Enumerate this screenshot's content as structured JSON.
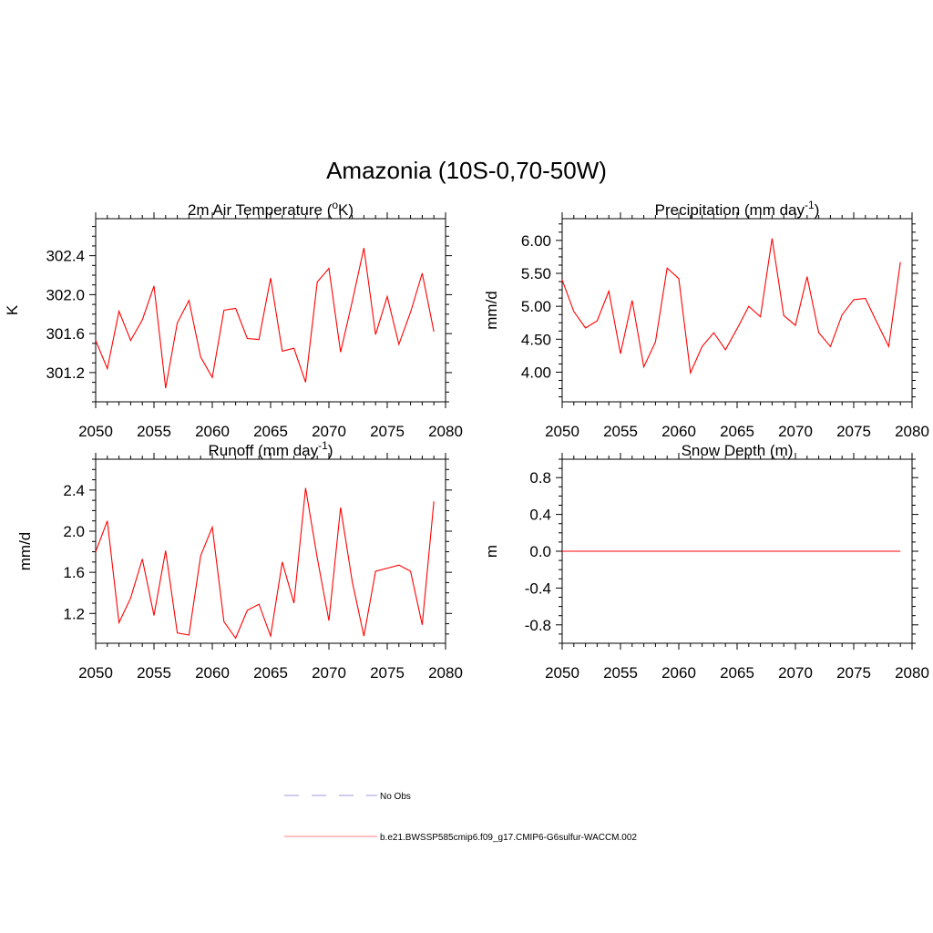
{
  "title": "Amazonia (10S-0,70-50W)",
  "colors": {
    "series": "#ff0000",
    "obs": "#9999dd",
    "axis": "#000000"
  },
  "legend": {
    "obs_label": "No Obs",
    "model_label": "b.e21.BWSSP585cmip6.f09_g17.CMIP6-G6sulfur-WACCM.002"
  },
  "chart_data": [
    {
      "type": "line",
      "title": "2m Air Temperature (oK)",
      "title_parts": {
        "main": "2m Air Temperature (",
        "sup": "o",
        "tail": "K)"
      },
      "ylabel": "K",
      "xlim": [
        2050,
        2080
      ],
      "ylim": [
        300.9,
        302.78
      ],
      "xticks": [
        "2050",
        "2055",
        "2060",
        "2065",
        "2070",
        "2075",
        "2080"
      ],
      "yticks": [
        "301.2",
        "301.6",
        "302.0",
        "302.4"
      ],
      "x": [
        2050,
        2051,
        2052,
        2053,
        2054,
        2055,
        2056,
        2057,
        2058,
        2059,
        2060,
        2061,
        2062,
        2063,
        2064,
        2065,
        2066,
        2067,
        2068,
        2069,
        2070,
        2071,
        2072,
        2073,
        2074,
        2075,
        2076,
        2077,
        2078,
        2079
      ],
      "series": [
        {
          "values": [
            301.53,
            301.24,
            301.83,
            301.53,
            301.74,
            302.09,
            301.04,
            301.71,
            301.94,
            301.36,
            301.15,
            301.84,
            301.86,
            301.55,
            301.54,
            302.17,
            301.42,
            301.45,
            301.1,
            302.13,
            302.27,
            301.41,
            301.93,
            302.48,
            301.59,
            301.98,
            301.49,
            301.82,
            302.22,
            301.62
          ]
        }
      ]
    },
    {
      "type": "line",
      "title": "Precipitation (mm day-1)",
      "title_parts": {
        "main": "Precipitation (mm day",
        "sup": "-1",
        "tail": ")"
      },
      "ylabel": "mm/d",
      "xlim": [
        2050,
        2080
      ],
      "ylim": [
        3.55,
        6.33
      ],
      "xticks": [
        "2050",
        "2055",
        "2060",
        "2065",
        "2070",
        "2075",
        "2080"
      ],
      "yticks": [
        "4.00",
        "4.50",
        "5.00",
        "5.50",
        "6.00"
      ],
      "x": [
        2050,
        2051,
        2052,
        2053,
        2054,
        2055,
        2056,
        2057,
        2058,
        2059,
        2060,
        2061,
        2062,
        2063,
        2064,
        2065,
        2066,
        2067,
        2068,
        2069,
        2070,
        2071,
        2072,
        2073,
        2074,
        2075,
        2076,
        2077,
        2078,
        2079
      ],
      "series": [
        {
          "values": [
            5.4,
            4.92,
            4.67,
            4.78,
            5.23,
            4.28,
            5.09,
            4.08,
            4.46,
            5.58,
            5.42,
            3.99,
            4.39,
            4.6,
            4.34,
            4.66,
            5.0,
            4.84,
            6.03,
            4.86,
            4.71,
            5.45,
            4.6,
            4.39,
            4.87,
            5.1,
            5.12,
            4.75,
            4.39,
            5.67
          ]
        }
      ]
    },
    {
      "type": "line",
      "title": "Runoff (mm day-1)",
      "title_parts": {
        "main": "Runoff (mm day",
        "sup": "-1",
        "tail": ")"
      },
      "ylabel": "mm/d",
      "xlim": [
        2050,
        2080
      ],
      "ylim": [
        0.91,
        2.7
      ],
      "xticks": [
        "2050",
        "2055",
        "2060",
        "2065",
        "2070",
        "2075",
        "2080"
      ],
      "yticks": [
        "1.2",
        "1.6",
        "2.0",
        "2.4"
      ],
      "x": [
        2050,
        2051,
        2052,
        2053,
        2054,
        2055,
        2056,
        2057,
        2058,
        2059,
        2060,
        2061,
        2062,
        2063,
        2064,
        2065,
        2066,
        2067,
        2068,
        2069,
        2070,
        2071,
        2072,
        2073,
        2074,
        2075,
        2076,
        2077,
        2078,
        2079
      ],
      "series": [
        {
          "values": [
            1.8,
            2.1,
            1.11,
            1.35,
            1.73,
            1.18,
            1.81,
            1.01,
            0.99,
            1.76,
            2.04,
            1.12,
            0.96,
            1.23,
            1.29,
            0.98,
            1.7,
            1.3,
            2.42,
            1.74,
            1.13,
            2.23,
            1.51,
            0.98,
            1.61,
            1.64,
            1.67,
            1.61,
            1.09,
            2.29
          ]
        }
      ]
    },
    {
      "type": "line",
      "title": "Snow Depth (m)",
      "title_parts": {
        "main": "Snow Depth (m)",
        "sup": "",
        "tail": ""
      },
      "ylabel": "m",
      "xlim": [
        2050,
        2080
      ],
      "ylim": [
        -1.0,
        1.0
      ],
      "xticks": [
        "2050",
        "2055",
        "2060",
        "2065",
        "2070",
        "2075",
        "2080"
      ],
      "yticks": [
        "-0.8",
        "-0.4",
        "0.0",
        "0.4",
        "0.8"
      ],
      "x": [
        2050,
        2051,
        2052,
        2053,
        2054,
        2055,
        2056,
        2057,
        2058,
        2059,
        2060,
        2061,
        2062,
        2063,
        2064,
        2065,
        2066,
        2067,
        2068,
        2069,
        2070,
        2071,
        2072,
        2073,
        2074,
        2075,
        2076,
        2077,
        2078,
        2079
      ],
      "series": [
        {
          "values": [
            0,
            0,
            0,
            0,
            0,
            0,
            0,
            0,
            0,
            0,
            0,
            0,
            0,
            0,
            0,
            0,
            0,
            0,
            0,
            0,
            0,
            0,
            0,
            0,
            0,
            0,
            0,
            0,
            0,
            0
          ]
        }
      ]
    }
  ]
}
